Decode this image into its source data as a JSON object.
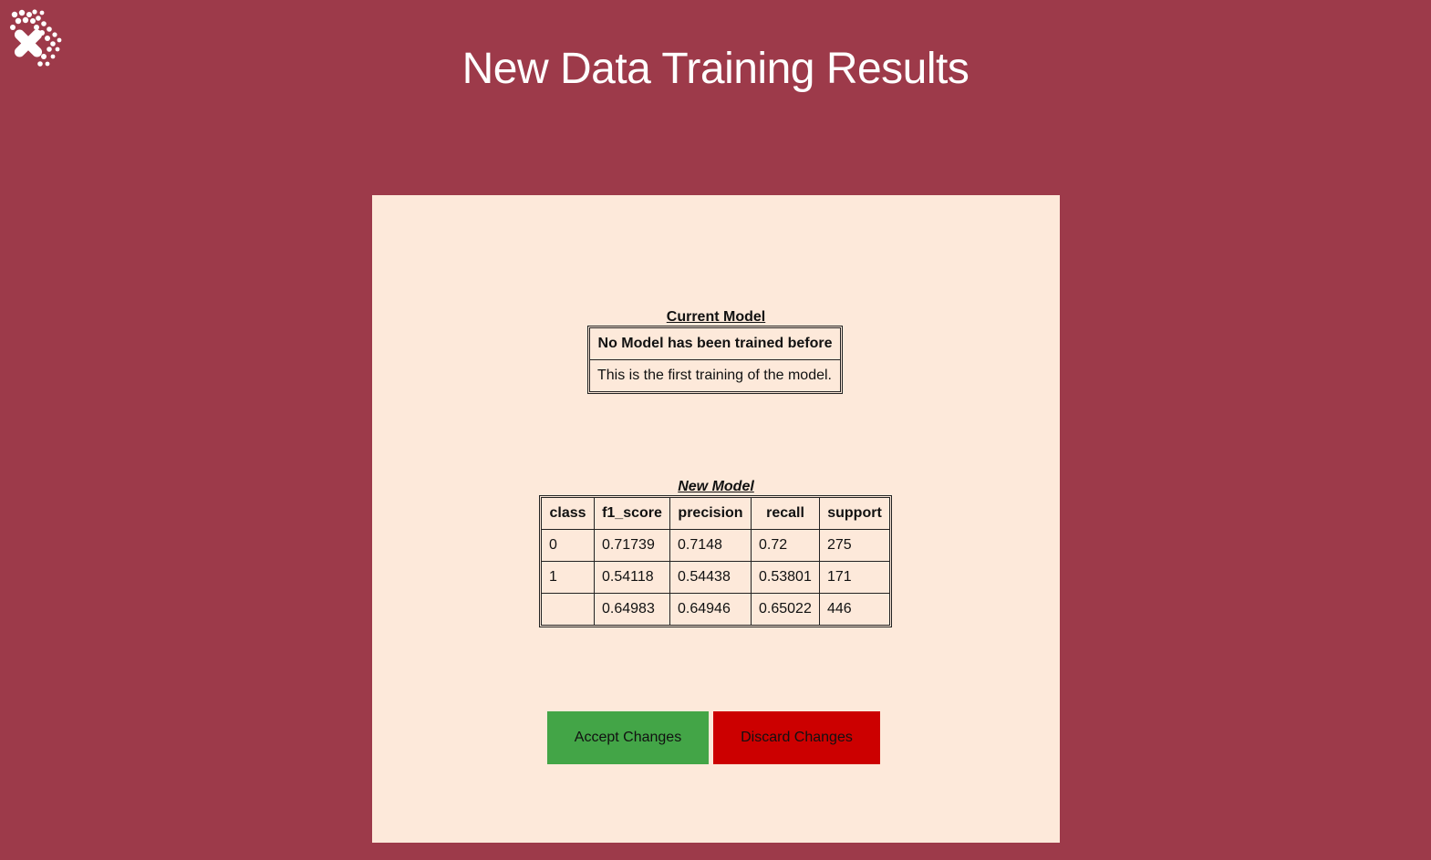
{
  "header": {
    "title": "New Data Training Results",
    "logo_icon": "cross-dots-logo-icon"
  },
  "current_model": {
    "caption": "Current Model",
    "heading": "No Model has been trained before",
    "message": "This is the first training of the model."
  },
  "new_model": {
    "caption": "New Model",
    "columns": [
      "class",
      "f1_score",
      "precision",
      "recall",
      "support"
    ],
    "rows": [
      [
        "0",
        "0.71739",
        "0.7148",
        "0.72",
        "275"
      ],
      [
        "1",
        "0.54118",
        "0.54438",
        "0.53801",
        "171"
      ],
      [
        "",
        "0.64983",
        "0.64946",
        "0.65022",
        "446"
      ]
    ]
  },
  "actions": {
    "accept_label": "Accept Changes",
    "discard_label": "Discard Changes"
  },
  "colors": {
    "background": "#9d3a4a",
    "panel": "#fde9da",
    "accept": "#43a547",
    "discard": "#cc0000"
  }
}
